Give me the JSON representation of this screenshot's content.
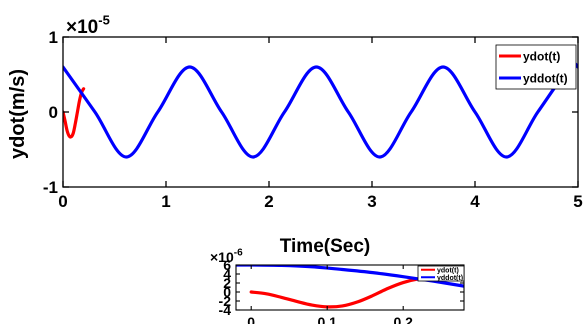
{
  "chart_data": [
    {
      "type": "line",
      "xlabel": "Time(Sec)",
      "ylabel": "ydot(m/s)",
      "exponent_label": "×10",
      "exponent_power": "-5",
      "xlim": [
        0,
        5
      ],
      "ylim": [
        -1,
        1
      ],
      "xticks": [
        "0",
        "1",
        "2",
        "3",
        "4",
        "5"
      ],
      "yticks": [
        "-1",
        "0",
        "1"
      ],
      "xtick_values": [
        0,
        1,
        2,
        3,
        4,
        5
      ],
      "ytick_values": [
        -1,
        0,
        1
      ],
      "legend_position": "top-right",
      "grid": false,
      "series": [
        {
          "name": "ydot(t)",
          "color": "#ff0000",
          "x": [
            0,
            0.02,
            0.04,
            0.06,
            0.08,
            0.1,
            0.12,
            0.14,
            0.16,
            0.18,
            0.2
          ],
          "y": [
            0,
            -0.12,
            -0.25,
            -0.32,
            -0.33,
            -0.28,
            -0.15,
            0.0,
            0.15,
            0.26,
            0.31
          ]
        },
        {
          "name": "yddot(t)",
          "color": "#0000ff",
          "x": [
            0,
            0.31,
            0.615,
            0.92,
            1.23,
            1.54,
            1.845,
            2.15,
            2.46,
            2.77,
            3.075,
            3.38,
            3.69,
            4.0,
            4.305,
            4.61,
            4.92,
            5.0
          ],
          "y": [
            0.6,
            0.0,
            -0.6,
            0.0,
            0.6,
            0.0,
            -0.6,
            0.0,
            0.6,
            0.0,
            -0.6,
            0.0,
            0.6,
            0.0,
            -0.6,
            0.0,
            0.6,
            0.6
          ]
        }
      ]
    },
    {
      "type": "line",
      "exponent_label": "×10",
      "exponent_power": "-6",
      "xlim": [
        -0.02,
        0.28
      ],
      "ylim": [
        -4,
        6
      ],
      "xticks": [
        "0",
        "0.1",
        "0.2"
      ],
      "yticks": [
        "-4",
        "-2",
        "0",
        "2",
        "4",
        "6"
      ],
      "xtick_values": [
        0,
        0.1,
        0.2
      ],
      "ytick_values": [
        -4,
        -2,
        0,
        2,
        4,
        6
      ],
      "legend_position": "top-right",
      "grid": false,
      "series": [
        {
          "name": "ydot(t)",
          "color": "#ff0000",
          "x": [
            0,
            0.02,
            0.04,
            0.06,
            0.08,
            0.1,
            0.12,
            0.14,
            0.16,
            0.18,
            0.2,
            0.22,
            0.24,
            0.26
          ],
          "y": [
            0,
            -0.4,
            -1.2,
            -2.1,
            -2.9,
            -3.3,
            -3.1,
            -2.2,
            -0.8,
            0.8,
            2.1,
            2.9,
            3.2,
            3.1
          ]
        },
        {
          "name": "yddot(t)",
          "color": "#0000ff",
          "x": [
            -0.02,
            0.0,
            0.04,
            0.08,
            0.12,
            0.16,
            0.2,
            0.24,
            0.28
          ],
          "y": [
            6.0,
            6.0,
            5.9,
            5.6,
            5.0,
            4.3,
            3.4,
            2.4,
            1.3
          ]
        }
      ]
    }
  ]
}
